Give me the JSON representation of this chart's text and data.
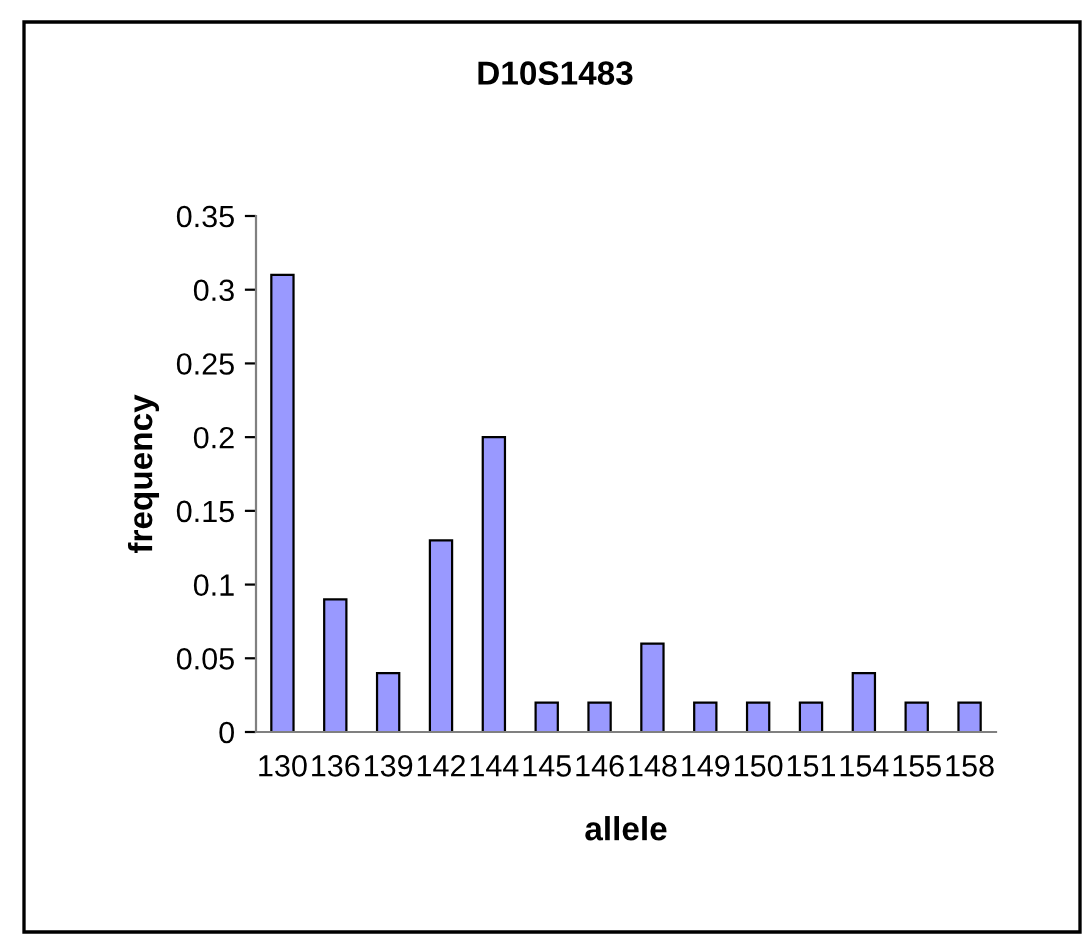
{
  "chart_data": {
    "type": "bar",
    "title": "D10S1483",
    "xlabel": "allele",
    "ylabel": "frequency",
    "categories": [
      "130",
      "136",
      "139",
      "142",
      "144",
      "145",
      "146",
      "148",
      "149",
      "150",
      "151",
      "154",
      "155",
      "158"
    ],
    "values": [
      0.31,
      0.09,
      0.04,
      0.13,
      0.2,
      0.02,
      0.02,
      0.06,
      0.02,
      0.02,
      0.02,
      0.04,
      0.02,
      0.02
    ],
    "color": "#9999ff",
    "ylim": [
      0,
      0.35
    ],
    "yticks": [
      0,
      0.05,
      0.1,
      0.15,
      0.2,
      0.25,
      0.3,
      0.35
    ],
    "grid": false,
    "legend": false
  }
}
